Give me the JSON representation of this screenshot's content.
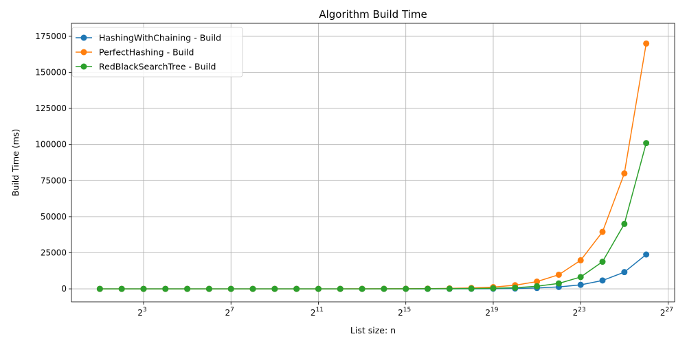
{
  "chart_data": {
    "type": "line",
    "title": "Algorithm Build Time",
    "xlabel": "List size: n",
    "ylabel": "Build Time (ms)",
    "x_scale": "log2",
    "xlim_log2": [
      -0.3,
      27.3
    ],
    "ylim": [
      -9000,
      184000
    ],
    "grid": true,
    "legend_position": "top-left",
    "xticks": [
      {
        "base": "2",
        "exp": "3",
        "value": 8
      },
      {
        "base": "2",
        "exp": "7",
        "value": 128
      },
      {
        "base": "2",
        "exp": "11",
        "value": 2048
      },
      {
        "base": "2",
        "exp": "15",
        "value": 32768
      },
      {
        "base": "2",
        "exp": "19",
        "value": 524288
      },
      {
        "base": "2",
        "exp": "23",
        "value": 8388608
      },
      {
        "base": "2",
        "exp": "27",
        "value": 134217728
      }
    ],
    "yticks": [
      {
        "label": "0",
        "value": 0
      },
      {
        "label": "25000",
        "value": 25000
      },
      {
        "label": "50000",
        "value": 50000
      },
      {
        "label": "75000",
        "value": 75000
      },
      {
        "label": "100000",
        "value": 100000
      },
      {
        "label": "125000",
        "value": 125000
      },
      {
        "label": "150000",
        "value": 150000
      },
      {
        "label": "175000",
        "value": 175000
      }
    ],
    "x": [
      2,
      4,
      8,
      16,
      32,
      64,
      128,
      256,
      512,
      1024,
      2048,
      4096,
      8192,
      16384,
      32768,
      65536,
      131072,
      262144,
      524288,
      1048576,
      2097152,
      4194304,
      8388608,
      16777216,
      33554432,
      67108864
    ],
    "series": [
      {
        "name": "HashingWithChaining - Build",
        "color": "#1f77b4",
        "values": [
          0,
          0,
          0,
          0,
          0,
          0,
          0,
          0,
          0,
          0,
          0,
          0,
          0,
          0,
          0,
          0,
          20,
          50,
          100,
          250,
          600,
          1300,
          2800,
          5800,
          11600,
          23800
        ]
      },
      {
        "name": "PerfectHashing - Build",
        "color": "#ff7f0e",
        "values": [
          0,
          0,
          0,
          0,
          0,
          0,
          0,
          0,
          0,
          0,
          0,
          0,
          20,
          40,
          80,
          150,
          300,
          600,
          1200,
          2500,
          5000,
          9800,
          19800,
          39500,
          80000,
          170000
        ]
      },
      {
        "name": "RedBlackSearchTree - Build",
        "color": "#2ca02c",
        "values": [
          0,
          0,
          0,
          0,
          0,
          0,
          0,
          0,
          0,
          0,
          0,
          0,
          0,
          20,
          40,
          60,
          100,
          200,
          400,
          800,
          1800,
          3800,
          8200,
          18800,
          45000,
          101000
        ]
      }
    ]
  }
}
